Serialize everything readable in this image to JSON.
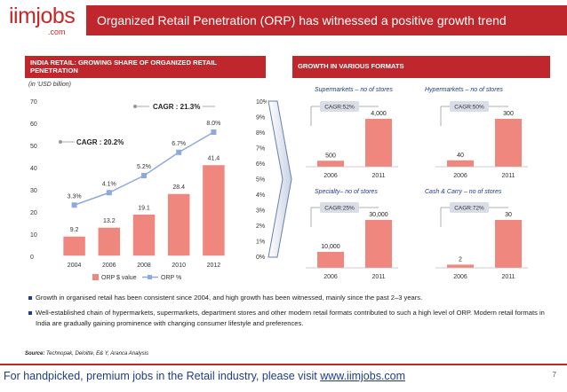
{
  "logo": {
    "main": "iimjobs",
    "sub": ".com"
  },
  "header": {
    "title": "Organized Retail Penetration (ORP) has witnessed a positive growth trend"
  },
  "left_section": {
    "title": "INDIA RETAIL: GROWING SHARE OF ORGANIZED RETAIL PENETRATION",
    "unit": "(in 'USD billion)"
  },
  "right_section": {
    "title": "GROWTH IN VARIOUS FORMATS"
  },
  "colors": {
    "brand_red": "#c0272d",
    "bar_red": "#f0877e",
    "line_blue": "#8fa9dc",
    "navy": "#1f3c88"
  },
  "chart_data": [
    {
      "id": "orp",
      "type": "bar",
      "title": "INDIA RETAIL: GROWING SHARE OF ORGANIZED RETAIL PENETRATION",
      "categories": [
        "2004",
        "2006",
        "2008",
        "2010",
        "2012"
      ],
      "series": [
        {
          "name": "ORP $ value",
          "kind": "bar",
          "axis": "left",
          "values": [
            9.2,
            13.2,
            19.1,
            28.4,
            41.4
          ],
          "labels": [
            "9.2",
            "13.2",
            "19.1",
            "28.4",
            "41.4"
          ]
        },
        {
          "name": "ORP %",
          "kind": "line",
          "axis": "right",
          "values": [
            3.3,
            4.1,
            5.2,
            6.7,
            8.0
          ],
          "labels": [
            "3.3%",
            "4.1%",
            "5.2%",
            "6.7%",
            "8.0%"
          ]
        }
      ],
      "ylim": [
        0,
        70
      ],
      "y_ticks": [
        "0",
        "10",
        "20",
        "30",
        "40",
        "50",
        "60",
        "70"
      ],
      "y2lim": [
        0,
        10
      ],
      "y2_ticks": [
        "0%",
        "1%",
        "2%",
        "3%",
        "4%",
        "5%",
        "6%",
        "7%",
        "8%",
        "9%",
        "10%"
      ],
      "annotations": [
        "CAGR : 20.2%",
        "CAGR : 21.3%"
      ],
      "legend": [
        "ORP $ value",
        "ORP %"
      ]
    },
    {
      "id": "supermarkets",
      "type": "bar",
      "title": "Supermarkets – no of stores",
      "categories": [
        "2006",
        "2011"
      ],
      "values": [
        500,
        4000
      ],
      "labels": [
        "500",
        "4,000"
      ],
      "cagr": "CAGR:52%"
    },
    {
      "id": "hypermarkets",
      "type": "bar",
      "title": "Hypermarkets – no of stores",
      "categories": [
        "2006",
        "2011"
      ],
      "values": [
        40,
        300
      ],
      "labels": [
        "40",
        "300"
      ],
      "cagr": "CAGR:50%"
    },
    {
      "id": "specialty",
      "type": "bar",
      "title": "Specialty– no of stores",
      "categories": [
        "2006",
        "2011"
      ],
      "values": [
        10000,
        30000
      ],
      "labels": [
        "10,000",
        "30,000"
      ],
      "cagr": "CAGR:25%"
    },
    {
      "id": "cashcarry",
      "type": "bar",
      "title": "Cash & Carry – no of stores",
      "categories": [
        "2006",
        "2011"
      ],
      "values": [
        2,
        30
      ],
      "labels": [
        "2",
        "30"
      ],
      "cagr": "CAGR:72%"
    }
  ],
  "bullets": [
    "Growth in organised retail has been consistent since 2004, and high growth has been witnessed, mainly since the past 2–3 years.",
    "Well-established chain of hypermarkets, supermarkets, department stores and other modern retail formats contributed to such a high level of ORP. Modern retail formats in India are gradually gaining prominence with changing consumer lifestyle and preferences."
  ],
  "source": {
    "label": "Source:",
    "text": " Technopak, Deloitte, E& Y, Aranca Analysis"
  },
  "footer": {
    "text": "For handpicked, premium jobs in the Retail industry, please visit ",
    "link": "www.iimjobs.com",
    "page": "7"
  }
}
